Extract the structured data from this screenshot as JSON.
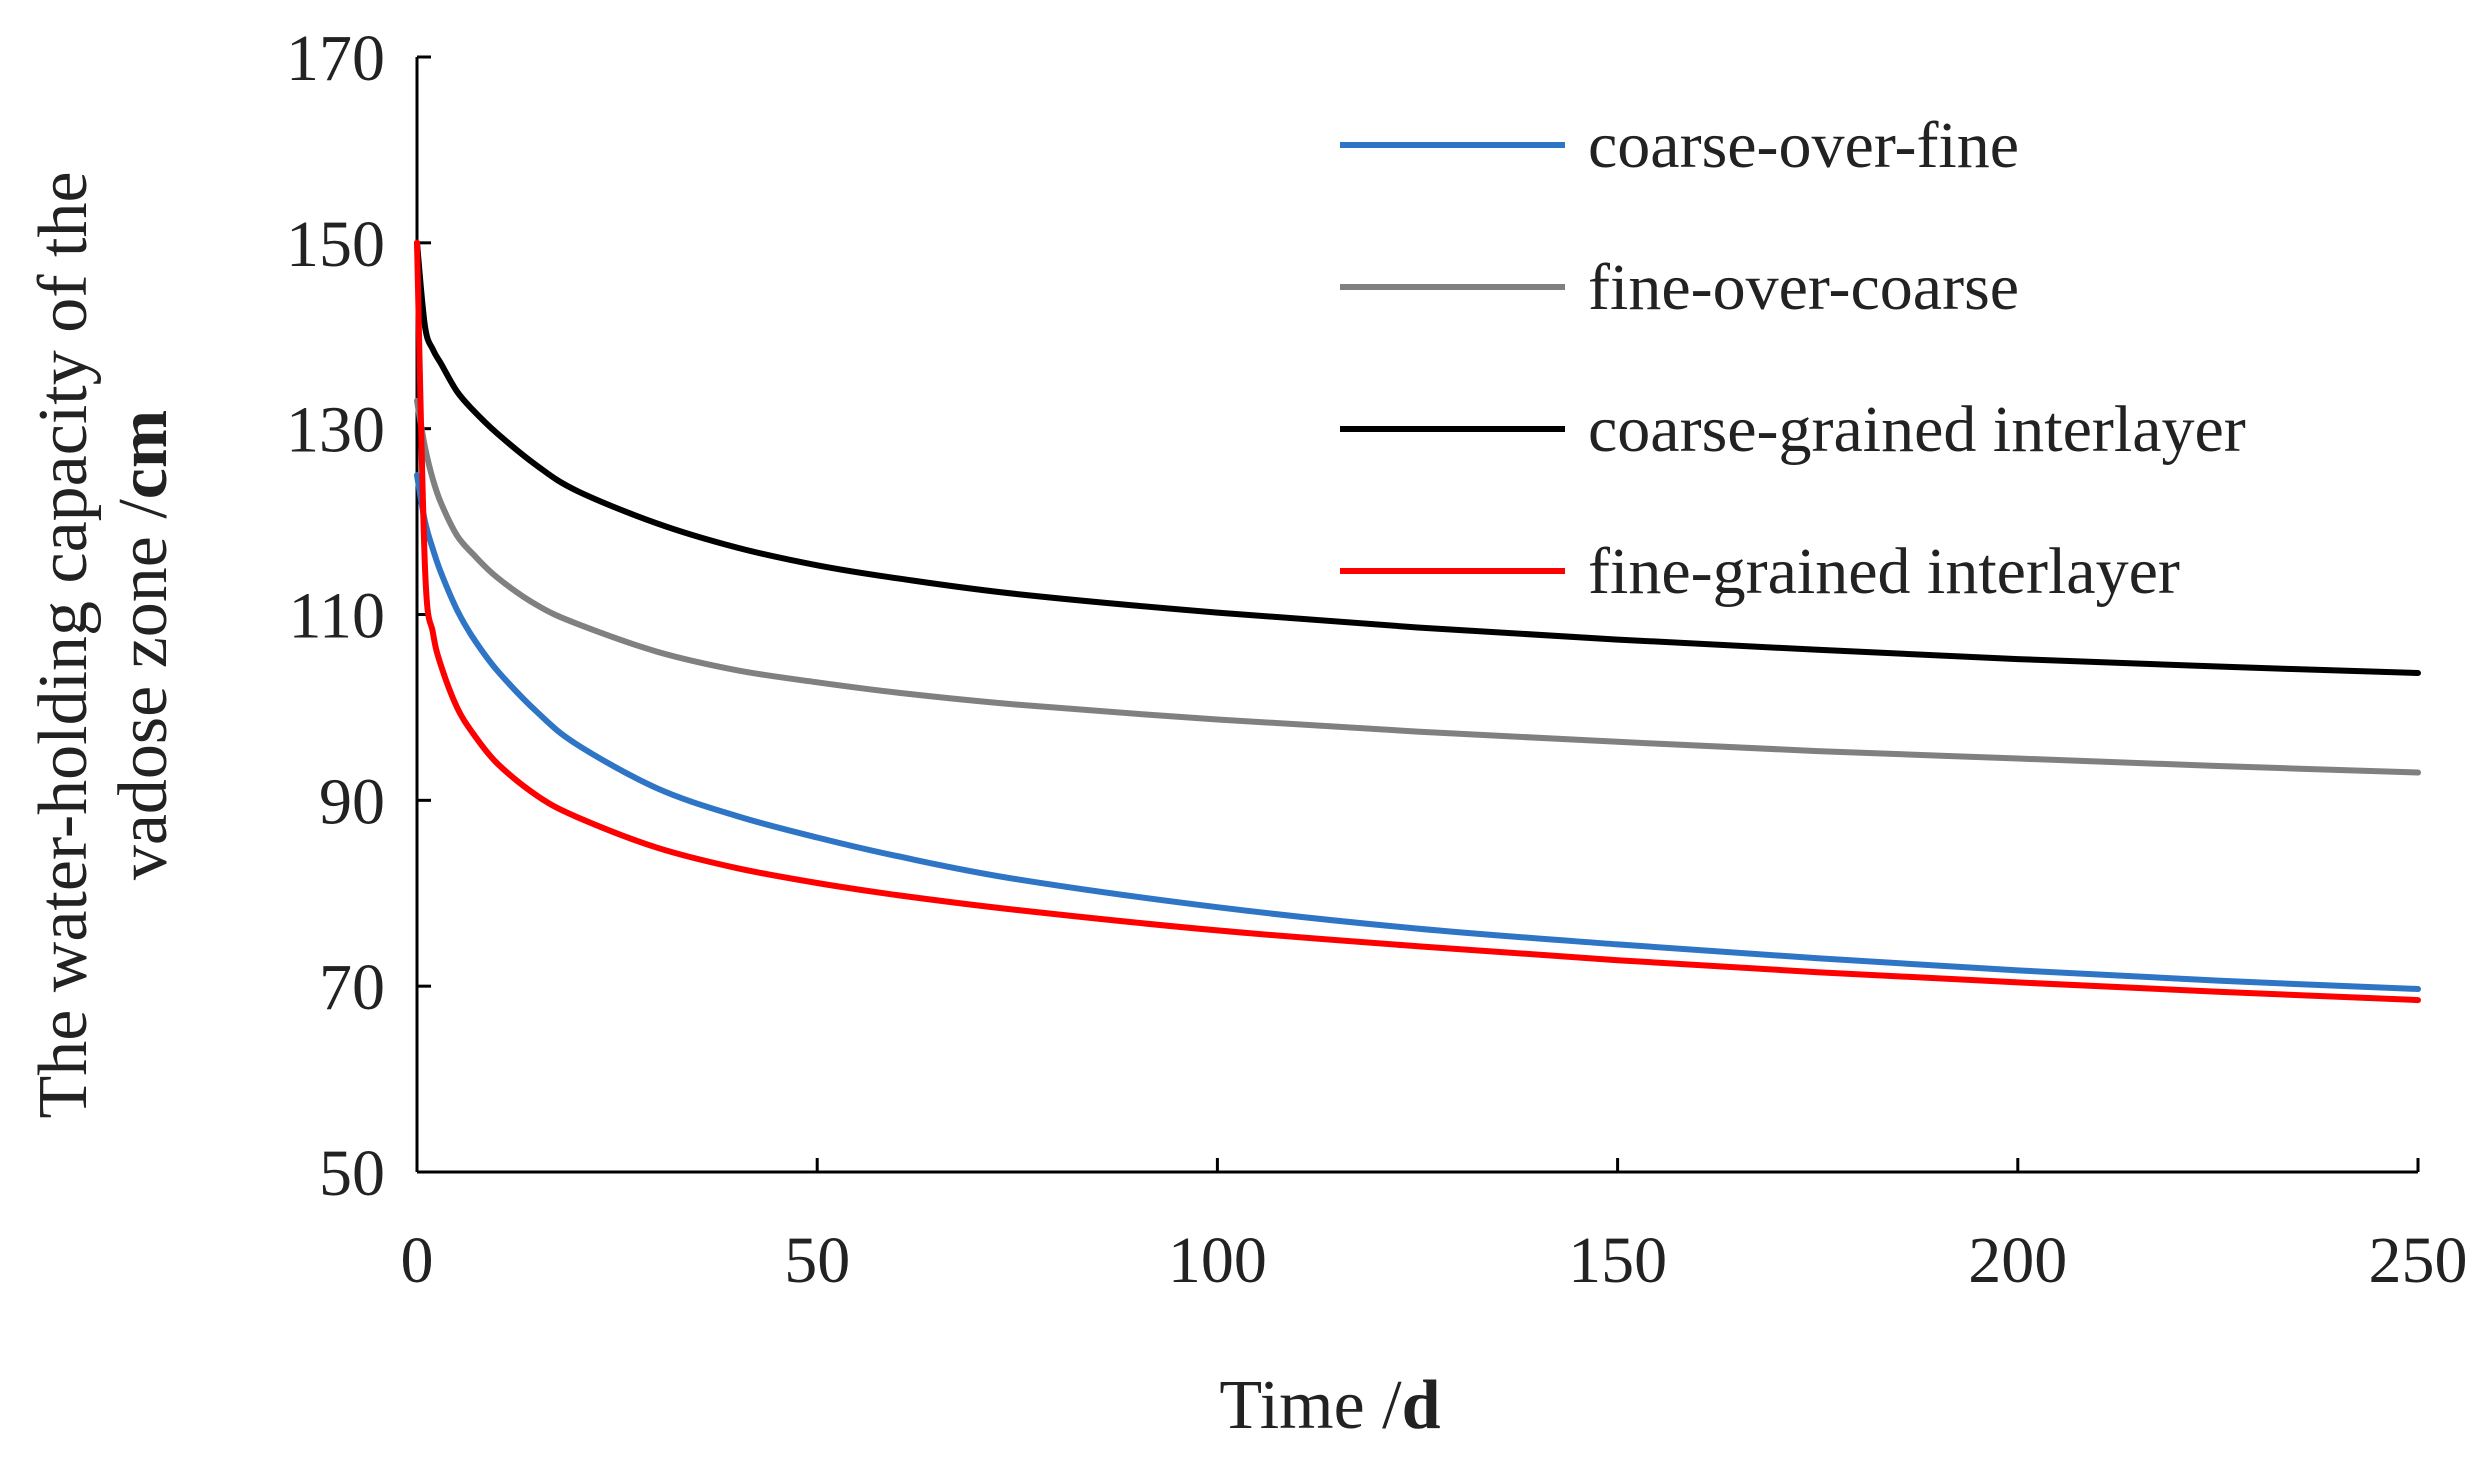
{
  "chart_data": {
    "type": "line",
    "title": "",
    "xlabel": "Time /",
    "xlabel_unit": "d",
    "ylabel_line1": "The water-holding  capacity of the",
    "ylabel_line2": "vadose zone /",
    "ylabel_unit": "cm",
    "xlim": [
      0,
      250
    ],
    "ylim": [
      50,
      170
    ],
    "xticks": [
      0,
      50,
      100,
      150,
      200,
      250
    ],
    "yticks": [
      50,
      70,
      90,
      110,
      130,
      150,
      170
    ],
    "grid": false,
    "legend_position": "top-right",
    "x": [
      0,
      1,
      2,
      3,
      5,
      7,
      10,
      15,
      20,
      30,
      40,
      50,
      60,
      75,
      100,
      125,
      150,
      175,
      200,
      225,
      250
    ],
    "series": [
      {
        "name": "coarse-over-fine",
        "color": "#2e75c6",
        "values": [
          125,
          120,
          117,
          114.5,
          110.5,
          107.5,
          104,
          99.5,
          96,
          91.3,
          88.3,
          86,
          84,
          81.5,
          78.5,
          76.2,
          74.5,
          73,
          71.7,
          70.6,
          69.7
        ]
      },
      {
        "name": "fine-over-coarse",
        "color": "#808080",
        "values": [
          133,
          128,
          124.5,
          122,
          118.5,
          116.5,
          114,
          111,
          109,
          106,
          104,
          102.7,
          101.6,
          100.3,
          98.7,
          97.4,
          96.3,
          95.3,
          94.5,
          93.7,
          93
        ]
      },
      {
        "name": "coarse-grained interlayer",
        "color": "#000000",
        "values": [
          150,
          141,
          138.5,
          137,
          134,
          132,
          129.5,
          126,
          123.3,
          119.8,
          117.2,
          115.3,
          113.9,
          112.2,
          110.2,
          108.6,
          107.3,
          106.2,
          105.2,
          104.4,
          103.7
        ]
      },
      {
        "name": "fine-grained interlayer",
        "color": "#ff0000",
        "values": [
          150,
          115,
          108,
          104.5,
          100,
          97.2,
          94,
          90.5,
          88.2,
          84.9,
          82.7,
          81.1,
          79.8,
          78.2,
          76,
          74.3,
          72.8,
          71.5,
          70.4,
          69.4,
          68.5
        ]
      }
    ]
  }
}
